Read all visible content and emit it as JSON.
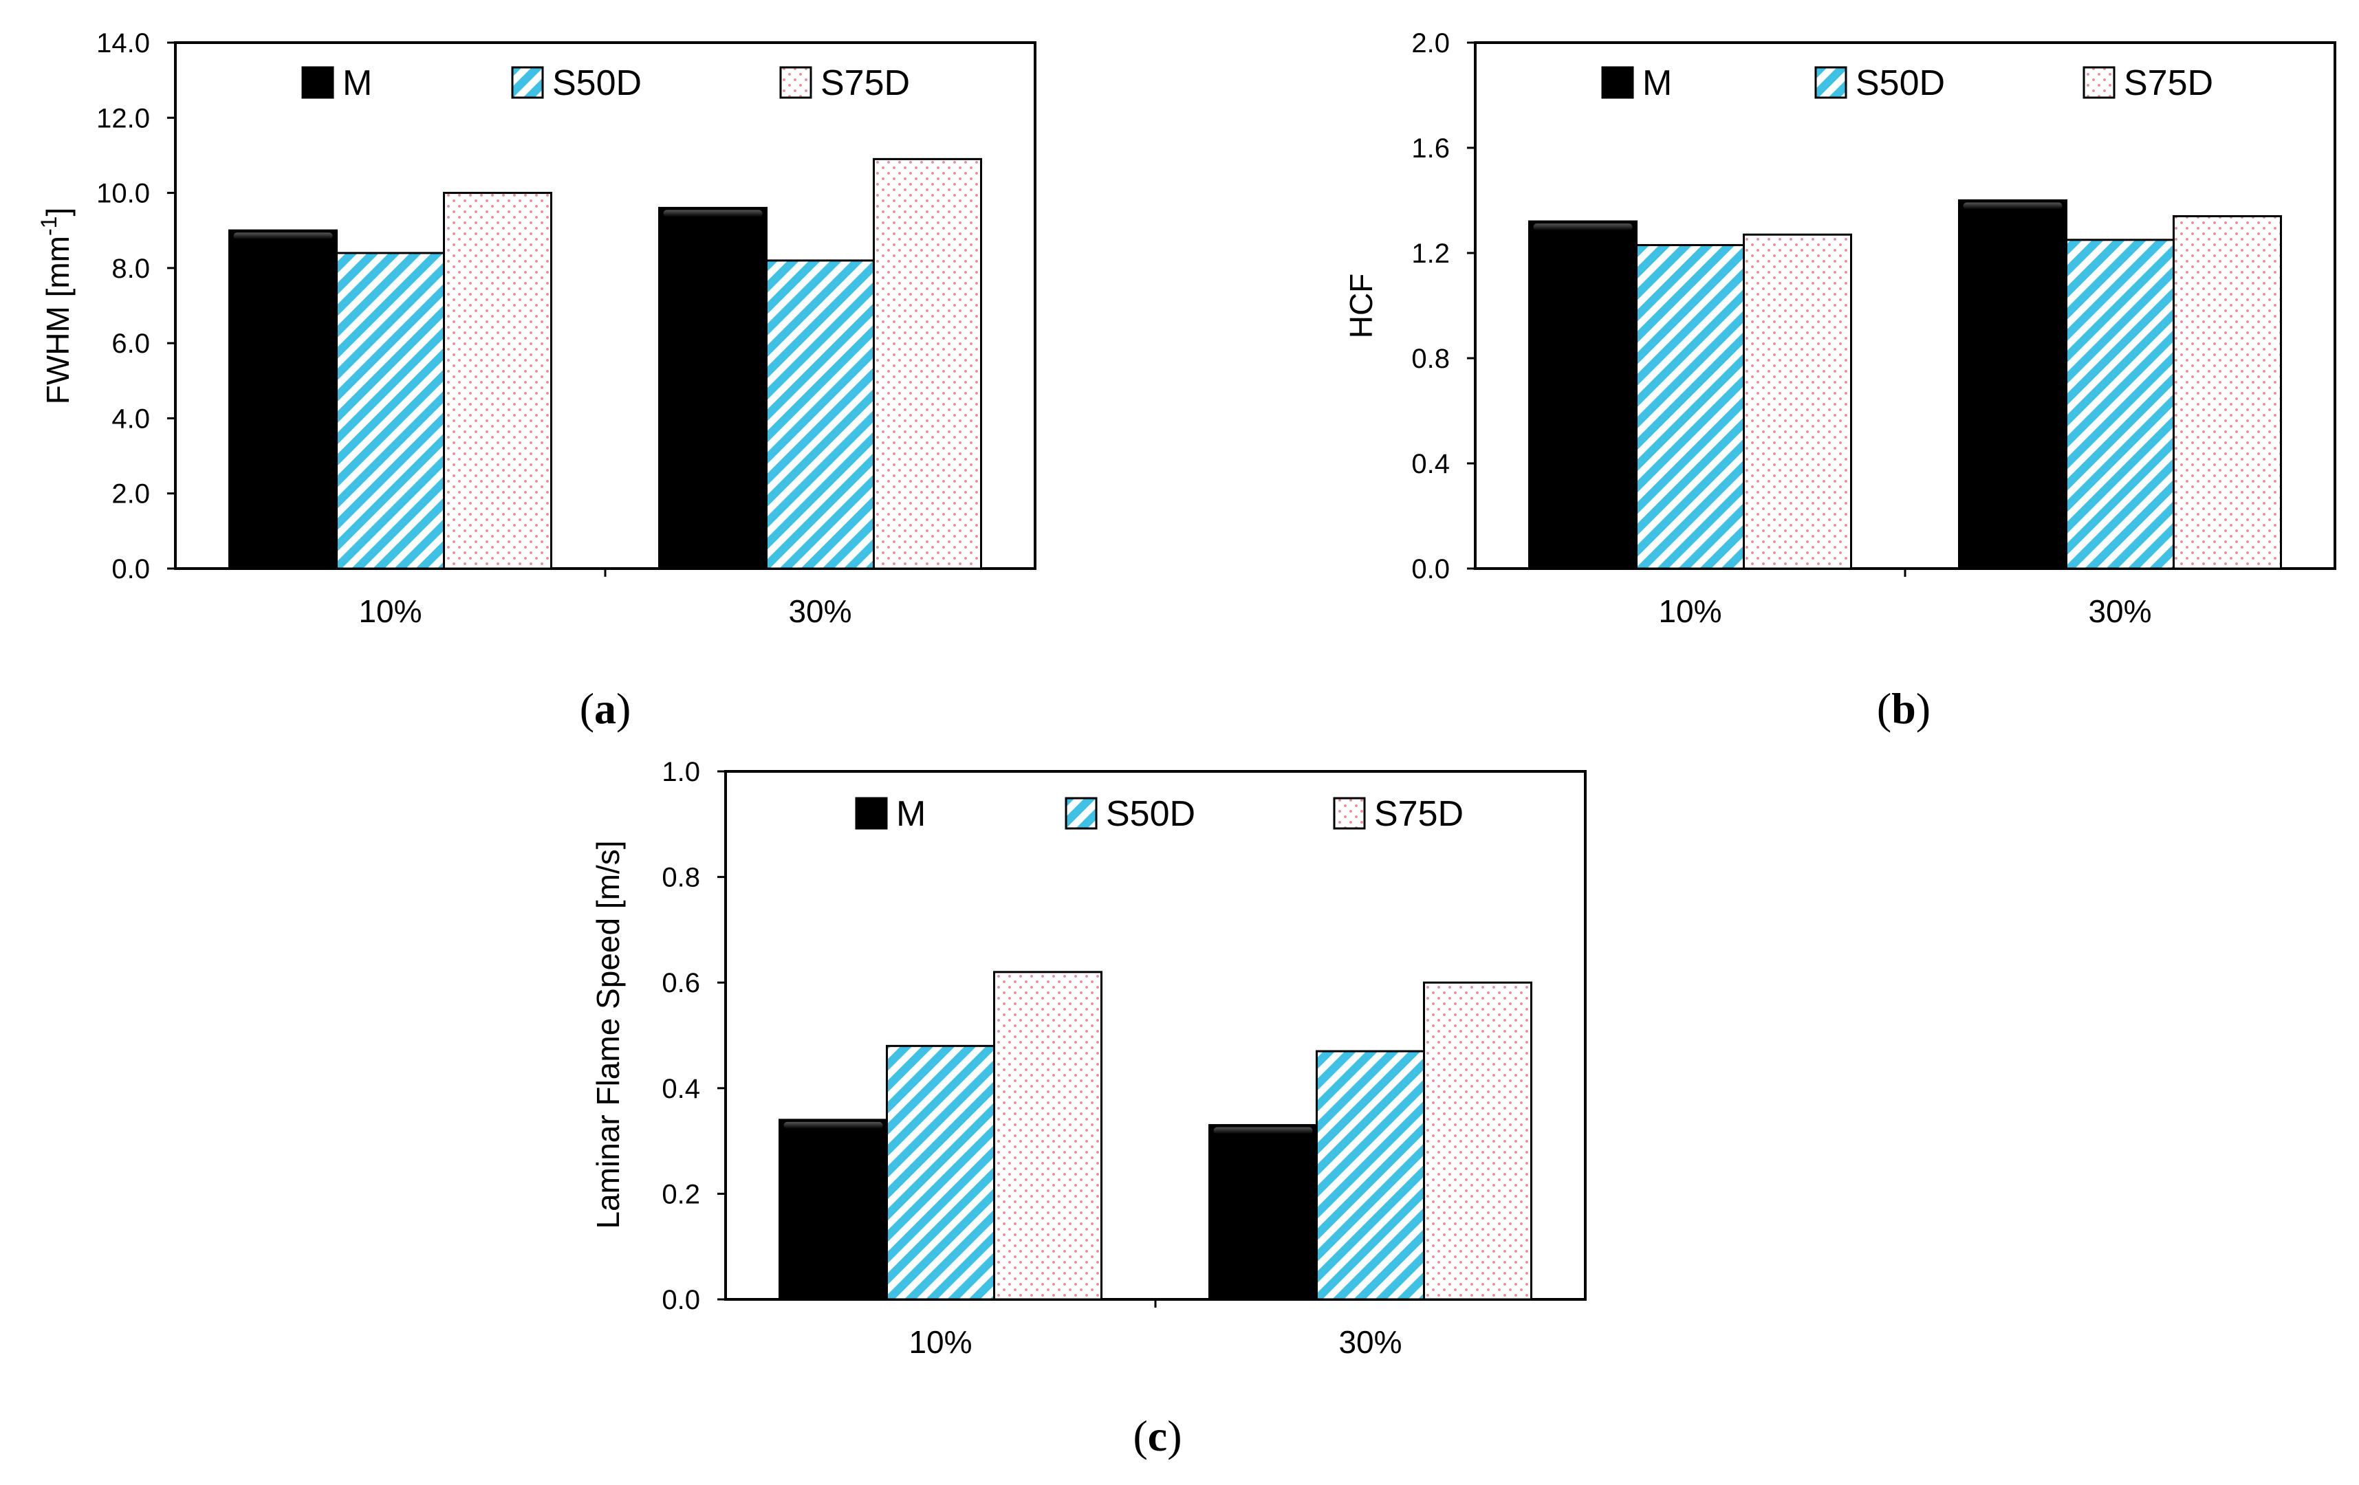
{
  "series_styles": {
    "M": {
      "fill": "#000000"
    },
    "S50D": {
      "stripe": "#3fc1e6",
      "bg": "#ffffff"
    },
    "S75D": {
      "dot": "#e88b8b",
      "bg": "#ffffff"
    }
  },
  "chart_data": [
    {
      "id": "a",
      "type": "bar",
      "caption": "a",
      "ylabel": "FWHM [mm",
      "ylabel_sup": "-1",
      "ylabel_end": "]",
      "categories": [
        "10%",
        "30%"
      ],
      "series": [
        {
          "name": "M",
          "values": [
            9.0,
            9.6
          ]
        },
        {
          "name": "S50D",
          "values": [
            8.4,
            8.2
          ]
        },
        {
          "name": "S75D",
          "values": [
            10.0,
            10.9
          ]
        }
      ],
      "ylim": [
        0,
        14
      ],
      "yticks": [
        "0.0",
        "2.0",
        "4.0",
        "6.0",
        "8.0",
        "10.0",
        "12.0",
        "14.0"
      ],
      "legend": "top"
    },
    {
      "id": "b",
      "type": "bar",
      "caption": "b",
      "ylabel": "HCF",
      "categories": [
        "10%",
        "30%"
      ],
      "series": [
        {
          "name": "M",
          "values": [
            1.32,
            1.4
          ]
        },
        {
          "name": "S50D",
          "values": [
            1.23,
            1.25
          ]
        },
        {
          "name": "S75D",
          "values": [
            1.27,
            1.34
          ]
        }
      ],
      "ylim": [
        0,
        2
      ],
      "yticks": [
        "0.0",
        "0.4",
        "0.8",
        "1.2",
        "1.6",
        "2.0"
      ],
      "legend": "top"
    },
    {
      "id": "c",
      "type": "bar",
      "caption": "c",
      "ylabel": "Laminar Flame Speed [m/s]",
      "categories": [
        "10%",
        "30%"
      ],
      "series": [
        {
          "name": "M",
          "values": [
            0.34,
            0.33
          ]
        },
        {
          "name": "S50D",
          "values": [
            0.48,
            0.47
          ]
        },
        {
          "name": "S75D",
          "values": [
            0.62,
            0.6
          ]
        }
      ],
      "ylim": [
        0,
        1
      ],
      "yticks": [
        "0.0",
        "0.2",
        "0.4",
        "0.6",
        "0.8",
        "1.0"
      ],
      "legend": "top"
    }
  ]
}
